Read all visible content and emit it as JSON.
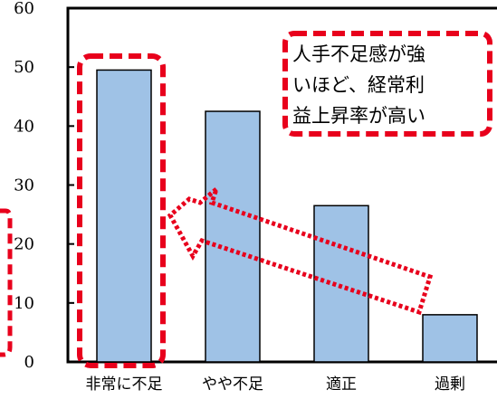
{
  "chart_data": {
    "type": "bar",
    "categories": [
      "非常に不足",
      "やや不足",
      "適正",
      "過剰"
    ],
    "values": [
      49.5,
      42.5,
      26.5,
      8
    ],
    "ylim": [
      0,
      60
    ],
    "yticks": [
      "0",
      "10",
      "20",
      "30",
      "40",
      "50",
      "60"
    ],
    "title": "",
    "xlabel": "",
    "ylabel": "",
    "grid": false,
    "colors": {
      "bar_fill": "#9fc2e6",
      "bar_stroke": "#000000",
      "highlight": "#e8001c"
    },
    "annotation": {
      "lines": [
        "人手不足感が強",
        "いほど、経常利",
        "益上昇率が高い"
      ]
    },
    "highlighted_category_index": 0
  }
}
